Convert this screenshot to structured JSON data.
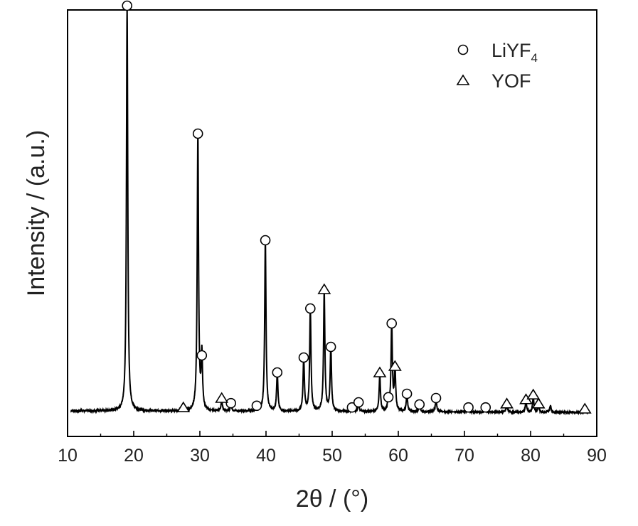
{
  "chart_data": {
    "type": "line",
    "title": "",
    "xlabel": "2θ / (°)",
    "ylabel": "Intensity / (a.u.)",
    "xlim": [
      10,
      90
    ],
    "ylim": [
      0,
      100
    ],
    "x_ticks": [
      10,
      20,
      30,
      40,
      50,
      60,
      70,
      80,
      90
    ],
    "x_tick_labels": [
      "10",
      "20",
      "30",
      "40",
      "50",
      "60",
      "70",
      "80",
      "90"
    ],
    "y_ticks_shown": false,
    "grid": false,
    "legend_position": "top-right",
    "baseline": 6,
    "peaks": [
      {
        "x": 19.0,
        "h": 95
      },
      {
        "x": 27.5,
        "h": 0.8
      },
      {
        "x": 29.7,
        "h": 65
      },
      {
        "x": 30.3,
        "h": 13
      },
      {
        "x": 33.3,
        "h": 2.5
      },
      {
        "x": 34.7,
        "h": 1.8
      },
      {
        "x": 38.6,
        "h": 1.0
      },
      {
        "x": 39.9,
        "h": 40
      },
      {
        "x": 41.7,
        "h": 9
      },
      {
        "x": 45.7,
        "h": 12.5
      },
      {
        "x": 46.7,
        "h": 24
      },
      {
        "x": 48.8,
        "h": 28
      },
      {
        "x": 49.8,
        "h": 15
      },
      {
        "x": 53.0,
        "h": 0.8
      },
      {
        "x": 54.0,
        "h": 2.0
      },
      {
        "x": 57.2,
        "h": 8.5
      },
      {
        "x": 58.5,
        "h": 3.0
      },
      {
        "x": 59.0,
        "h": 20.5
      },
      {
        "x": 59.5,
        "h": 10
      },
      {
        "x": 61.3,
        "h": 4.0
      },
      {
        "x": 63.2,
        "h": 1.5
      },
      {
        "x": 65.7,
        "h": 3.0
      },
      {
        "x": 70.6,
        "h": 0.8
      },
      {
        "x": 73.2,
        "h": 0.8
      },
      {
        "x": 76.4,
        "h": 1.5
      },
      {
        "x": 79.3,
        "h": 2.5
      },
      {
        "x": 80.4,
        "h": 3.5
      },
      {
        "x": 81.2,
        "h": 1.5
      },
      {
        "x": 83.0,
        "h": 1.5
      },
      {
        "x": 88.2,
        "h": 0.5
      }
    ],
    "series": [
      {
        "name": "LiYF4",
        "marker": "circle",
        "points": [
          [
            19.0,
            101
          ],
          [
            29.7,
            71
          ],
          [
            30.3,
            19
          ],
          [
            34.7,
            7.8
          ],
          [
            38.6,
            7.2
          ],
          [
            39.9,
            46
          ],
          [
            41.7,
            15
          ],
          [
            45.7,
            18.5
          ],
          [
            46.7,
            30
          ],
          [
            49.8,
            21
          ],
          [
            53.0,
            6.8
          ],
          [
            54.0,
            8
          ],
          [
            58.5,
            9.2
          ],
          [
            59.0,
            26.5
          ],
          [
            61.3,
            10
          ],
          [
            63.2,
            7.5
          ],
          [
            65.7,
            9
          ],
          [
            70.6,
            6.8
          ],
          [
            73.2,
            6.8
          ]
        ]
      },
      {
        "name": "YOF",
        "marker": "triangle",
        "points": [
          [
            27.5,
            6.8
          ],
          [
            33.3,
            9
          ],
          [
            48.8,
            34.5
          ],
          [
            57.2,
            15
          ],
          [
            59.5,
            16.5
          ],
          [
            76.4,
            7.7
          ],
          [
            79.3,
            8.7
          ],
          [
            80.4,
            9.8
          ],
          [
            81.2,
            7.7
          ],
          [
            88.2,
            6.5
          ]
        ]
      }
    ],
    "legend": [
      {
        "label": "LiYF",
        "subscript": "4",
        "marker": "circle"
      },
      {
        "label": "YOF",
        "subscript": "",
        "marker": "triangle"
      }
    ],
    "colors": {
      "line": "#000000",
      "marker_stroke": "#000000",
      "marker_fill": "#ffffff",
      "axis": "#000000"
    }
  }
}
